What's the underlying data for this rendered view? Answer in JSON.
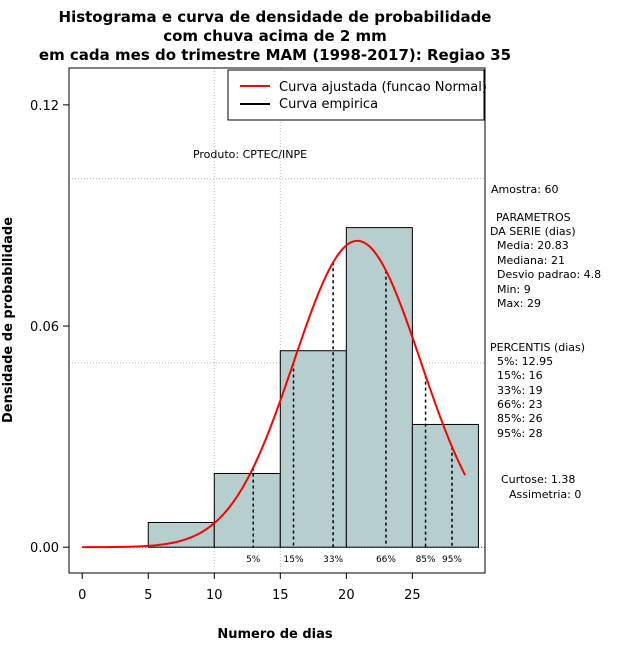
{
  "chart_data": {
    "type": "bar",
    "title": [
      "Histograma e curva de densidade de probabilidade",
      "com chuva acima de 2 mm",
      "em cada mes do trimestre MAM (1998-2017): Regiao 35"
    ],
    "xlabel": "Numero de dias",
    "ylabel": "Densidade de probabilidade",
    "xlim": [
      -1,
      30.5
    ],
    "ylim": [
      -0.007,
      0.13
    ],
    "x_ticks": [
      "0",
      "5",
      "10",
      "15",
      "20",
      "25"
    ],
    "x_tick_values": [
      0,
      5,
      10,
      15,
      20,
      25
    ],
    "y_ticks": [
      "0.00",
      "0.06",
      "0.12"
    ],
    "y_tick_values": [
      0,
      0.06,
      0.12
    ],
    "grid_v": [
      10,
      15
    ],
    "grid_h": [
      0.1,
      0.05
    ],
    "bins": [
      {
        "from": 5,
        "to": 10,
        "density": 0.0067
      },
      {
        "from": 10,
        "to": 15,
        "density": 0.02
      },
      {
        "from": 15,
        "to": 20,
        "density": 0.0533
      },
      {
        "from": 20,
        "to": 25,
        "density": 0.0867
      },
      {
        "from": 25,
        "to": 30,
        "density": 0.0333
      }
    ],
    "bar_color": "#b6cece",
    "curve": {
      "name": "Curva ajustada (funcao Normal)",
      "color": "#ff0000",
      "mean": 20.83,
      "sd": 4.8,
      "x_from": 0,
      "x_to": 29
    },
    "legend": {
      "placement": "top-right",
      "entries": [
        {
          "label": "Curva ajustada (funcao Normal)",
          "color": "#ff0000"
        },
        {
          "label": "Curva empirica",
          "color": "#000000"
        }
      ]
    },
    "percentiles": [
      {
        "label": "5%",
        "value": 12.95
      },
      {
        "label": "15%",
        "value": 16
      },
      {
        "label": "33%",
        "value": 19
      },
      {
        "label": "66%",
        "value": 23
      },
      {
        "label": "85%",
        "value": 26
      },
      {
        "label": "95%",
        "value": 28
      }
    ],
    "annotation": "Produto: CPTEC/INPE"
  },
  "stats": {
    "amostra": "Amostra: 60",
    "param_title_1": "PARAMETROS",
    "param_title_2": "DA SERIE (dias)",
    "media": "Media: 20.83",
    "mediana": "Mediana: 21",
    "desvio": "Desvio padrao: 4.8",
    "min": "Min: 9",
    "max": "Max: 29",
    "percentis_title": "PERCENTIS (dias)",
    "p5": "5%: 12.95",
    "p15": "15%: 16",
    "p33": "33%: 19",
    "p66": "66%: 23",
    "p85": "85%: 26",
    "p95": "95%: 28",
    "curtose": "Curtose: 1.38",
    "assimetria": "Assimetria: 0"
  }
}
